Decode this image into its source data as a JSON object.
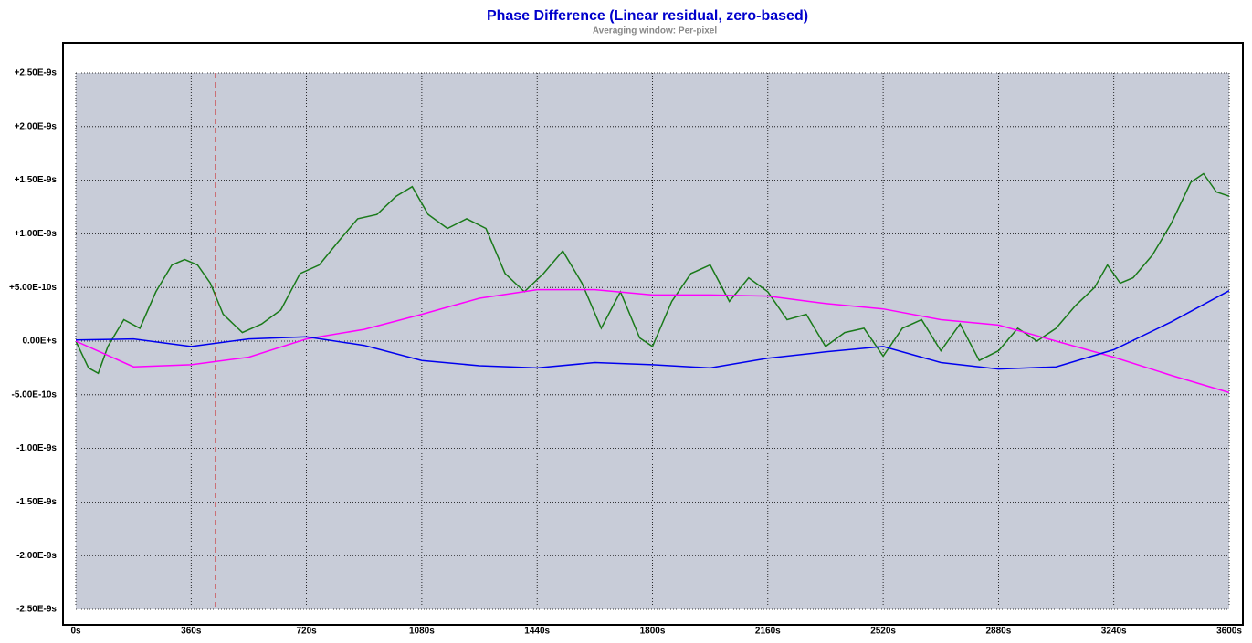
{
  "chart_data": {
    "type": "line",
    "title": "Phase Difference (Linear residual, zero-based)",
    "subtitle": "Averaging window: Per-pixel",
    "xlim": [
      0,
      3600
    ],
    "xticks": [
      {
        "value": 0,
        "label": "0s"
      },
      {
        "value": 360,
        "label": "360s"
      },
      {
        "value": 720,
        "label": "720s"
      },
      {
        "value": 1080,
        "label": "1080s"
      },
      {
        "value": 1440,
        "label": "1440s"
      },
      {
        "value": 1800,
        "label": "1800s"
      },
      {
        "value": 2160,
        "label": "2160s"
      },
      {
        "value": 2520,
        "label": "2520s"
      },
      {
        "value": 2880,
        "label": "2880s"
      },
      {
        "value": 3240,
        "label": "3240s"
      },
      {
        "value": 3600,
        "label": "3600s"
      }
    ],
    "ylim": [
      -2.5e-09,
      2.5e-09
    ],
    "yticks": [
      {
        "value": 2.5e-09,
        "label": "+2.50E-9s"
      },
      {
        "value": 2e-09,
        "label": "+2.00E-9s"
      },
      {
        "value": 1.5e-09,
        "label": "+1.50E-9s"
      },
      {
        "value": 1e-09,
        "label": "+1.00E-9s"
      },
      {
        "value": 5e-10,
        "label": "+5.00E-10s"
      },
      {
        "value": 0,
        "label": "0.00E+s"
      },
      {
        "value": -5e-10,
        "label": "-5.00E-10s"
      },
      {
        "value": -1e-09,
        "label": "-1.00E-9s"
      },
      {
        "value": -1.5e-09,
        "label": "-1.50E-9s"
      },
      {
        "value": -2e-09,
        "label": "-2.00E-9s"
      },
      {
        "value": -2.5e-09,
        "label": "-2.50E-9s"
      }
    ],
    "grid": true,
    "marker_x": 436,
    "marker_color": "#cc2222",
    "series": [
      {
        "color": "#1a7a1a",
        "x": [
          0,
          40,
          70,
          100,
          150,
          200,
          250,
          300,
          340,
          380,
          420,
          460,
          520,
          580,
          640,
          700,
          760,
          820,
          880,
          940,
          1000,
          1050,
          1100,
          1160,
          1220,
          1280,
          1340,
          1400,
          1460,
          1520,
          1580,
          1640,
          1700,
          1760,
          1800,
          1860,
          1920,
          1980,
          2040,
          2100,
          2160,
          2220,
          2280,
          2340,
          2400,
          2460,
          2520,
          2580,
          2640,
          2700,
          2760,
          2820,
          2880,
          2940,
          3000,
          3060,
          3120,
          3180,
          3220,
          3260,
          3300,
          3360,
          3420,
          3480,
          3520,
          3560,
          3600
        ],
        "values": [
          0,
          -2.5e-10,
          -3e-10,
          -5e-11,
          2e-10,
          1.2e-10,
          4.6e-10,
          7.1e-10,
          7.6e-10,
          7.1e-10,
          5.4e-10,
          2.5e-10,
          8e-11,
          1.6e-10,
          2.9e-10,
          6.3e-10,
          7.1e-10,
          9.3e-10,
          1.14e-09,
          1.18e-09,
          1.35e-09,
          1.44e-09,
          1.18e-09,
          1.05e-09,
          1.14e-09,
          1.05e-09,
          6.3e-10,
          4.6e-10,
          6.3e-10,
          8.4e-10,
          5.4e-10,
          1.2e-10,
          4.6e-10,
          3e-11,
          -5e-11,
          3.7e-10,
          6.3e-10,
          7.1e-10,
          3.7e-10,
          5.9e-10,
          4.6e-10,
          2e-10,
          2.5e-10,
          -5e-11,
          8e-11,
          1.2e-10,
          -1.4e-10,
          1.2e-10,
          2e-10,
          -9e-11,
          1.6e-10,
          -1.8e-10,
          -9e-11,
          1.2e-10,
          0,
          1.2e-10,
          3.3e-10,
          5e-10,
          7.1e-10,
          5.4e-10,
          5.9e-10,
          8e-10,
          1.1e-09,
          1.48e-09,
          1.56e-09,
          1.39e-09,
          1.35e-09
        ]
      },
      {
        "color": "#ff00ff",
        "x": [
          0,
          180,
          360,
          540,
          720,
          900,
          1080,
          1260,
          1440,
          1620,
          1800,
          1980,
          2160,
          2340,
          2520,
          2700,
          2880,
          3060,
          3240,
          3420,
          3600
        ],
        "values": [
          0,
          -2.4e-10,
          -2.2e-10,
          -1.5e-10,
          2e-11,
          1.1e-10,
          2.5e-10,
          4e-10,
          4.8e-10,
          4.8e-10,
          4.3e-10,
          4.3e-10,
          4.2e-10,
          3.5e-10,
          3e-10,
          2e-10,
          1.5e-10,
          0,
          -1.5e-10,
          -3.2e-10,
          -4.8e-10
        ]
      },
      {
        "color": "#0000ee",
        "x": [
          0,
          180,
          360,
          540,
          720,
          900,
          1080,
          1260,
          1440,
          1620,
          1800,
          1980,
          2160,
          2340,
          2520,
          2700,
          2880,
          3060,
          3240,
          3420,
          3600
        ],
        "values": [
          1e-11,
          2e-11,
          -5e-11,
          2e-11,
          4e-11,
          -4e-11,
          -1.8e-10,
          -2.3e-10,
          -2.5e-10,
          -2e-10,
          -2.2e-10,
          -2.5e-10,
          -1.6e-10,
          -1e-10,
          -5e-11,
          -2e-10,
          -2.6e-10,
          -2.4e-10,
          -8e-11,
          1.8e-10,
          4.7e-10
        ]
      }
    ]
  }
}
